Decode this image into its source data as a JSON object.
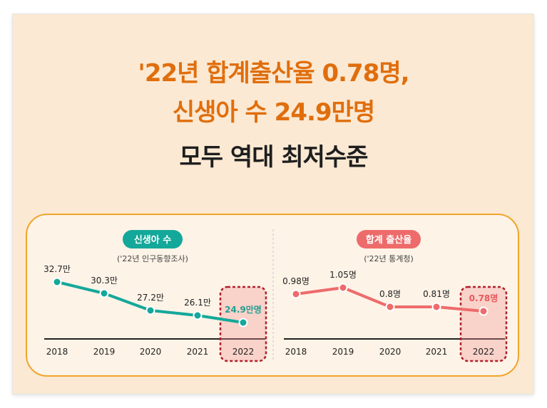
{
  "headline": {
    "line1": "'22년 합계출산율 0.78명,",
    "line2": "신생아 수 24.9만명",
    "line3": "모두 역대 최저수준"
  },
  "colors": {
    "headline_accent": "#e06e0d",
    "panel_border": "#f0a52a",
    "births_series": "#14a89a",
    "fertility_series": "#ee6b6b",
    "highlight_box": "#b0202a"
  },
  "chart_data": [
    {
      "type": "line",
      "badge": "신생아 수",
      "source": "('22년 인구동향조사)",
      "categories": [
        "2018",
        "2019",
        "2020",
        "2021",
        "2022"
      ],
      "values": [
        32.7,
        30.3,
        27.2,
        26.1,
        24.9
      ],
      "value_labels": [
        "32.7만",
        "30.3만",
        "27.2만",
        "26.1만",
        "24.9만명"
      ],
      "highlight": "2022",
      "title": "",
      "xlabel": "",
      "ylabel": "",
      "grid": false
    },
    {
      "type": "line",
      "badge": "합계 출산율",
      "source": "('22년 통계청)",
      "categories": [
        "2018",
        "2019",
        "2020",
        "2021",
        "2022"
      ],
      "values": [
        0.98,
        1.05,
        0.84,
        0.81,
        0.78
      ],
      "value_labels": [
        "0.98명",
        "1.05명",
        "0.8명",
        "0.81명",
        "0.78명"
      ],
      "highlight": "2022",
      "title": "",
      "xlabel": "",
      "ylabel": "",
      "grid": false
    }
  ]
}
